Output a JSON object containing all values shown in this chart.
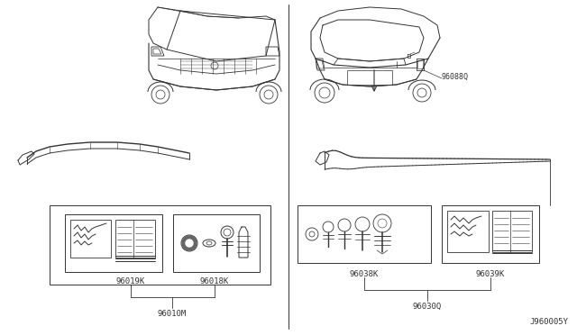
{
  "bg_color": "#ffffff",
  "line_color": "#333333",
  "fig_width": 6.4,
  "fig_height": 3.72,
  "dpi": 100,
  "title_bottom": "J960005Y",
  "left_part_number": "96010M",
  "right_part_number": "96030Q",
  "left_sub_labels": [
    "96019K",
    "96018K"
  ],
  "right_sub_labels": [
    "96038K",
    "96039K"
  ],
  "right_arrow_label": "96088Q"
}
